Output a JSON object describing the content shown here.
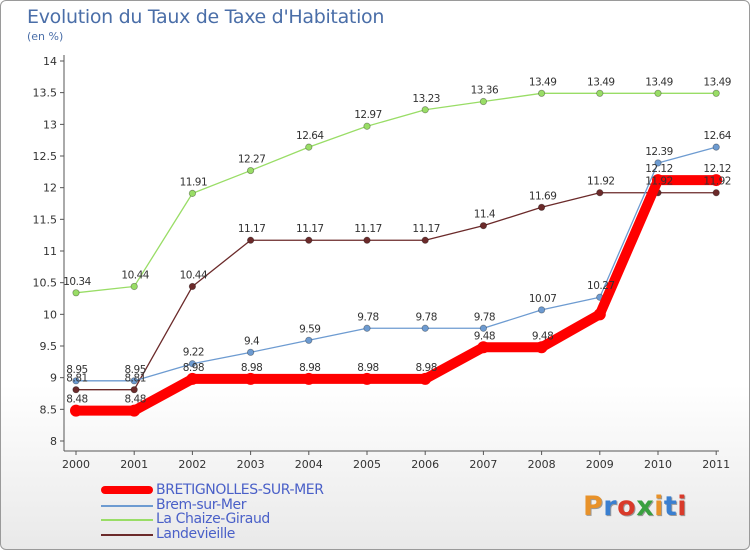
{
  "title": "Evolution du Taux de Taxe d'Habitation",
  "subtitle": "(en %)",
  "logo": "Proxiti",
  "logo_colors": [
    "#e8922a",
    "#3a7fd0",
    "#d93a2a",
    "#3aa040",
    "#e8922a",
    "#3a7fd0",
    "#d93a2a"
  ],
  "chart_data": {
    "type": "line",
    "x": [
      "2000",
      "2001",
      "2002",
      "2003",
      "2004",
      "2005",
      "2006",
      "2007",
      "2008",
      "2009",
      "2010",
      "2011"
    ],
    "ylim": [
      8,
      14
    ],
    "yticks": [
      "8",
      "8.5",
      "9",
      "9.5",
      "10",
      "10.5",
      "11",
      "11.5",
      "12",
      "12.5",
      "13",
      "13.5",
      "14"
    ],
    "grid": false,
    "legend_position": "bottom-left",
    "series": [
      {
        "name": "BRETIGNOLLES-SUR-MER",
        "color": "#ff0000",
        "values": [
          8.48,
          8.48,
          8.98,
          8.98,
          8.98,
          8.98,
          8.98,
          9.48,
          9.48,
          10.0,
          12.12,
          12.12
        ],
        "labels": [
          "8.48",
          "8.48",
          "8.98",
          "8.98",
          "8.98",
          "8.98",
          "8.98",
          "9.48",
          "9.48",
          "",
          "12.12",
          "12.12"
        ]
      },
      {
        "name": "Brem-sur-Mer",
        "color": "#6d9bd1",
        "values": [
          8.95,
          8.95,
          9.22,
          9.4,
          9.59,
          9.78,
          9.78,
          9.78,
          10.07,
          10.27,
          12.39,
          12.64
        ],
        "labels": [
          "8.95",
          "8.95",
          "9.22",
          "9.4",
          "9.59",
          "9.78",
          "9.78",
          "9.78",
          "10.07",
          "10.27",
          "12.39",
          "12.64"
        ]
      },
      {
        "name": "La Chaize-Giraud",
        "color": "#99dd66",
        "values": [
          10.34,
          10.44,
          11.91,
          12.27,
          12.64,
          12.97,
          13.23,
          13.36,
          13.49,
          13.49,
          13.49,
          13.49
        ],
        "labels": [
          "10.34",
          "10.44",
          "11.91",
          "12.27",
          "12.64",
          "12.97",
          "13.23",
          "13.36",
          "13.49",
          "13.49",
          "13.49",
          "13.49"
        ]
      },
      {
        "name": "Landevieille",
        "color": "#6b2a2a",
        "values": [
          8.81,
          8.81,
          10.44,
          11.17,
          11.17,
          11.17,
          11.17,
          11.4,
          11.69,
          11.92,
          11.92,
          11.92
        ],
        "labels": [
          "8.81",
          "8.81",
          "10.44",
          "11.17",
          "11.17",
          "11.17",
          "11.17",
          "11.4",
          "11.69",
          "11.92",
          "11.92",
          "11.92"
        ]
      }
    ]
  }
}
